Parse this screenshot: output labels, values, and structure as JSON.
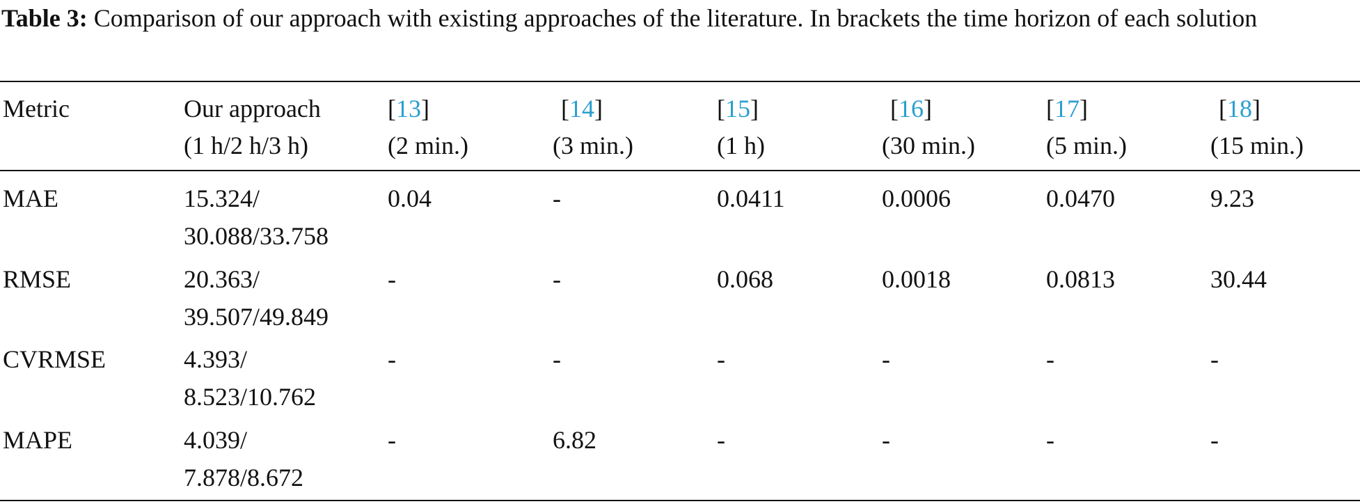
{
  "caption": {
    "label": "Table 3:",
    "text": "Comparison of our approach with existing approaches of the literature. In brackets the time horizon of each solution"
  },
  "table": {
    "header": [
      {
        "name": "Metric"
      },
      {
        "name": "Our approach",
        "horizon": "(1 h/2 h/3 h)"
      },
      {
        "ref": [
          "[",
          "13",
          "]"
        ],
        "horizon": "(2 min.)"
      },
      {
        "ref": [
          "[",
          "14",
          "]"
        ],
        "horizon": "(3 min.)"
      },
      {
        "ref": [
          "[",
          "15",
          "]"
        ],
        "horizon": "(1 h)"
      },
      {
        "ref": [
          "[",
          "16",
          "]"
        ],
        "horizon": "(30 min.)"
      },
      {
        "ref": [
          "[",
          "17",
          "]"
        ],
        "horizon": "(5 min.)"
      },
      {
        "ref": [
          "[",
          "18",
          "]"
        ],
        "horizon": "(15 min.)"
      }
    ],
    "rows": [
      [
        [
          "MAE"
        ],
        [
          "15.324/",
          "30.088/33.758"
        ],
        [
          "0.04"
        ],
        [
          "-"
        ],
        [
          "0.0411"
        ],
        [
          "0.0006"
        ],
        [
          "0.0470"
        ],
        [
          "9.23"
        ]
      ],
      [
        [
          "RMSE"
        ],
        [
          "20.363/",
          "39.507/49.849"
        ],
        [
          "-"
        ],
        [
          "-"
        ],
        [
          "0.068"
        ],
        [
          "0.0018"
        ],
        [
          "0.0813"
        ],
        [
          "30.44"
        ]
      ],
      [
        [
          "CVRMSE"
        ],
        [
          "4.393/",
          "8.523/10.762"
        ],
        [
          "-"
        ],
        [
          "-"
        ],
        [
          "-"
        ],
        [
          "-"
        ],
        [
          "-"
        ],
        [
          "-"
        ]
      ],
      [
        [
          "MAPE"
        ],
        [
          "4.039/",
          "7.878/8.672"
        ],
        [
          "-"
        ],
        [
          "6.82"
        ],
        [
          "-"
        ],
        [
          "-"
        ],
        [
          "-"
        ],
        [
          "-"
        ]
      ]
    ]
  }
}
